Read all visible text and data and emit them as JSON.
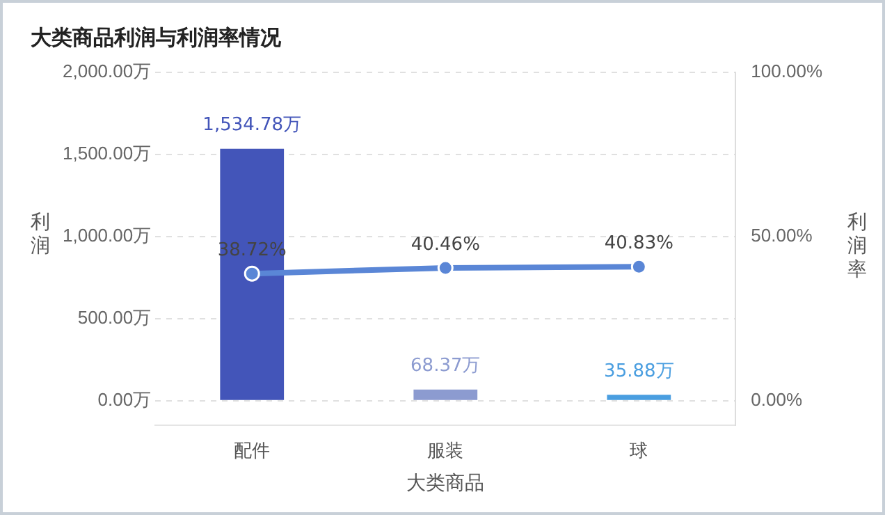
{
  "chart_data": {
    "type": "bar",
    "title": "大类商品利润与利润率情况",
    "xlabel": "大类商品",
    "ylabel": "利润",
    "y2label": "利润率",
    "categories": [
      "配件",
      "服装",
      "球"
    ],
    "series": [
      {
        "colors": [
          "#4355b9",
          "#8c9bd0",
          "#4a9ee0"
        ],
        "values": [
          1534.78,
          68.37,
          35.88
        ],
        "value_labels": [
          "1,534.78万",
          "68.37万",
          "35.88万"
        ]
      },
      {
        "type": "line",
        "axis": "y2",
        "color": "#5a86d6",
        "values": [
          38.72,
          40.46,
          40.83
        ],
        "value_labels": [
          "38.72%",
          "40.46%",
          "40.83%"
        ]
      }
    ],
    "ylim": [
      -150,
      2000
    ],
    "yticks": [
      {
        "value": 0,
        "label": "0.00万"
      },
      {
        "value": 500,
        "label": "500.00万"
      },
      {
        "value": 1000,
        "label": "1,000.00万"
      },
      {
        "value": 1500,
        "label": "1,500.00万"
      },
      {
        "value": 2000,
        "label": "2,000.00万"
      }
    ],
    "y2lim": [
      -7.5,
      100
    ],
    "y2ticks": [
      {
        "value": 0,
        "label": "0.00%"
      },
      {
        "value": 50,
        "label": "50.00%"
      },
      {
        "value": 100,
        "label": "100.00%"
      }
    ],
    "grid": "y",
    "legend": false,
    "marker": "circle"
  }
}
